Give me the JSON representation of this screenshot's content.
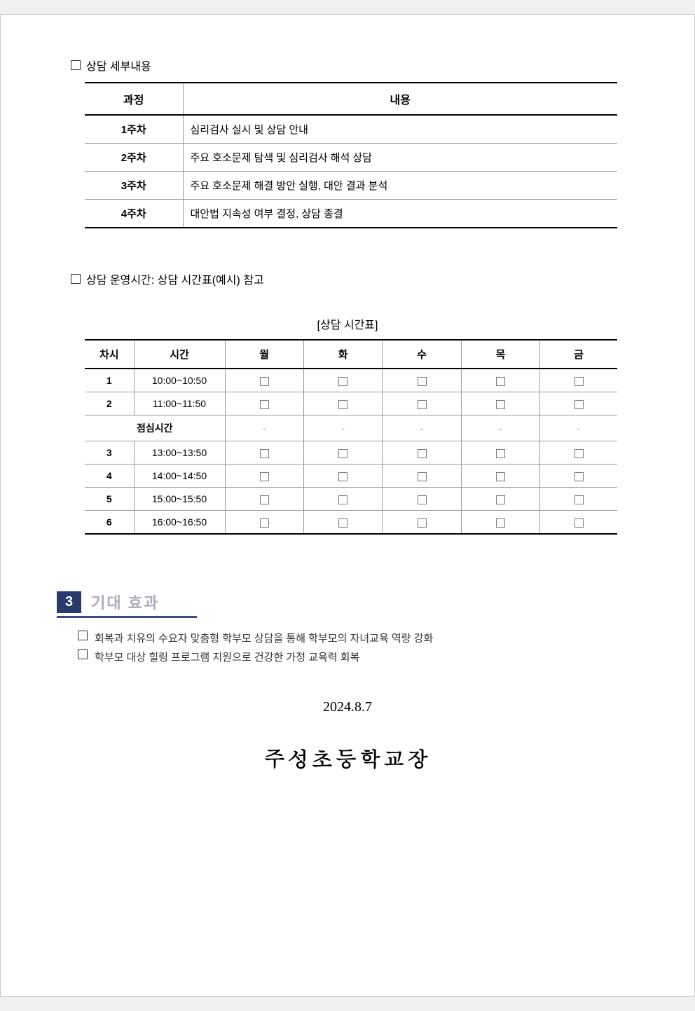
{
  "section1": {
    "title": "상담 세부내용",
    "table": {
      "headers": [
        "과정",
        "내용"
      ],
      "rows": [
        {
          "week": "1주차",
          "content": "심리검사 실시 및 상담 안내"
        },
        {
          "week": "2주차",
          "content": "주요 호소문제 탐색 및 심리검사 해석 상담"
        },
        {
          "week": "3주차",
          "content": "주요 호소문제 해결 방안 실행, 대안 결과 분석"
        },
        {
          "week": "4주차",
          "content": "대안법 지속성 여부 결정, 상담 종결"
        }
      ]
    }
  },
  "section2": {
    "title": "상담 운영시간: 상담 시간표(예시) 참고",
    "caption": "[상담 시간표]",
    "table": {
      "headers": [
        "차시",
        "시간",
        "월",
        "화",
        "수",
        "목",
        "금"
      ],
      "lunch_label": "점심시간",
      "rows": [
        {
          "period": "1",
          "time": "10:00~10:50",
          "is_lunch": false
        },
        {
          "period": "2",
          "time": "11:00~11:50",
          "is_lunch": false
        },
        {
          "period": "",
          "time": "",
          "is_lunch": true
        },
        {
          "period": "3",
          "time": "13:00~13:50",
          "is_lunch": false
        },
        {
          "period": "4",
          "time": "14:00~14:50",
          "is_lunch": false
        },
        {
          "period": "5",
          "time": "15:00~15:50",
          "is_lunch": false
        },
        {
          "period": "6",
          "time": "16:00~16:50",
          "is_lunch": false
        }
      ]
    }
  },
  "section3": {
    "number": "3",
    "title": "기대 효과",
    "bullets": [
      "회복과 치유의 수요자 맞춤형 학부모 상담을 통해 학부모의 자녀교육 역량 강화",
      "학부모 대상 힐링 프로그램 지원으로 건강한 가정 교육력 회복"
    ]
  },
  "date": "2024.8.7",
  "signature": "주성초등학교장",
  "colors": {
    "badge_bg": "#2a3a6a",
    "underline": "#3a4a8a",
    "title_gray": "#aaaabb"
  }
}
